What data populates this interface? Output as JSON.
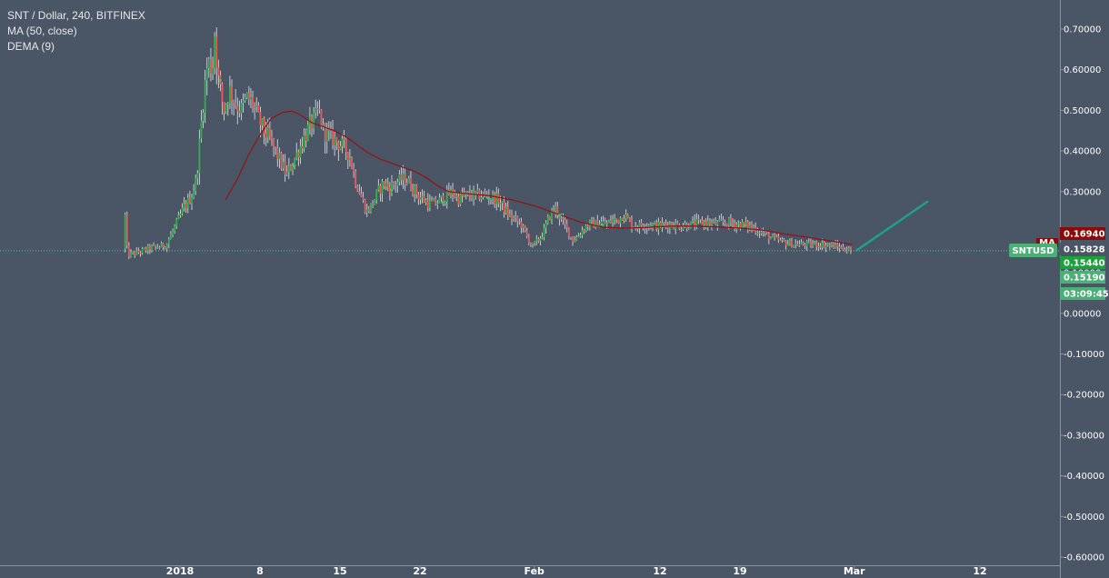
{
  "legend": {
    "symbol": "SNT / Dollar, 240, BITFINEX",
    "ma": "MA (50, close)",
    "dema": "DEMA (9)"
  },
  "colors": {
    "background": "#4a5566",
    "up": "#30b34a",
    "down": "#ee5a5a",
    "wick": "#ffffff",
    "ma": "#8e1818",
    "dema_dots": "#3ec95a",
    "projection": "#1f9f8c",
    "last_price_line": "#4fc3a1"
  },
  "chart_data": {
    "type": "candlestick",
    "title": "SNT / Dollar, 240, BITFINEX",
    "ylim": [
      -0.6,
      0.72
    ],
    "y_ticks": [
      "0.70000",
      "0.60000",
      "0.50000",
      "0.40000",
      "0.30000",
      "0.20000",
      "0.10000",
      "0.00000",
      "-0.10000",
      "-0.20000",
      "-0.30000",
      "-0.40000",
      "-0.50000",
      "-0.60000"
    ],
    "y_tick_values": [
      0.7,
      0.6,
      0.5,
      0.4,
      0.3,
      0.2,
      0.1,
      0.0,
      -0.1,
      -0.2,
      -0.3,
      -0.4,
      -0.5,
      -0.6
    ],
    "x_ticks": [
      {
        "label": "2018",
        "day": 0
      },
      {
        "label": "8",
        "day": 7
      },
      {
        "label": "15",
        "day": 14
      },
      {
        "label": "22",
        "day": 21
      },
      {
        "label": "Feb",
        "day": 31
      },
      {
        "label": "12",
        "day": 42
      },
      {
        "label": "19",
        "day": 49
      },
      {
        "label": "Mar",
        "day": 59
      },
      {
        "label": "12",
        "day": 70
      }
    ],
    "xlim_days": [
      -15,
      76
    ],
    "price_path": [
      [
        -4.8,
        0.16
      ],
      [
        -4.7,
        0.38
      ],
      [
        -4.6,
        0.17
      ],
      [
        -4.3,
        0.145
      ],
      [
        -3.5,
        0.15
      ],
      [
        -2.5,
        0.16
      ],
      [
        -1.5,
        0.165
      ],
      [
        -1.0,
        0.17
      ],
      [
        0.0,
        0.23
      ],
      [
        0.5,
        0.26
      ],
      [
        1.0,
        0.28
      ],
      [
        1.3,
        0.3
      ],
      [
        1.6,
        0.33
      ],
      [
        2.0,
        0.46
      ],
      [
        2.3,
        0.55
      ],
      [
        2.6,
        0.62
      ],
      [
        3.0,
        0.6
      ],
      [
        3.2,
        0.69
      ],
      [
        3.5,
        0.58
      ],
      [
        4.0,
        0.5
      ],
      [
        4.5,
        0.55
      ],
      [
        5.0,
        0.52
      ],
      [
        5.5,
        0.5
      ],
      [
        6.0,
        0.53
      ],
      [
        6.5,
        0.52
      ],
      [
        7.0,
        0.48
      ],
      [
        7.5,
        0.45
      ],
      [
        8.0,
        0.43
      ],
      [
        8.5,
        0.4
      ],
      [
        9.0,
        0.37
      ],
      [
        9.5,
        0.34
      ],
      [
        10.0,
        0.37
      ],
      [
        10.5,
        0.4
      ],
      [
        11.0,
        0.43
      ],
      [
        11.5,
        0.46
      ],
      [
        12.0,
        0.48
      ],
      [
        12.3,
        0.5
      ],
      [
        12.7,
        0.45
      ],
      [
        13.0,
        0.44
      ],
      [
        13.5,
        0.43
      ],
      [
        14.0,
        0.42
      ],
      [
        14.5,
        0.41
      ],
      [
        15.0,
        0.39
      ],
      [
        15.5,
        0.33
      ],
      [
        16.0,
        0.29
      ],
      [
        16.5,
        0.25
      ],
      [
        17.0,
        0.27
      ],
      [
        17.5,
        0.3
      ],
      [
        18.0,
        0.32
      ],
      [
        18.5,
        0.31
      ],
      [
        19.0,
        0.32
      ],
      [
        19.5,
        0.33
      ],
      [
        20.0,
        0.33
      ],
      [
        20.5,
        0.31
      ],
      [
        21.0,
        0.29
      ],
      [
        21.5,
        0.28
      ],
      [
        22.0,
        0.27
      ],
      [
        22.5,
        0.27
      ],
      [
        23.0,
        0.28
      ],
      [
        23.5,
        0.29
      ],
      [
        24.0,
        0.3
      ],
      [
        24.5,
        0.28
      ],
      [
        25.0,
        0.29
      ],
      [
        26.0,
        0.29
      ],
      [
        27.0,
        0.29
      ],
      [
        28.0,
        0.28
      ],
      [
        28.5,
        0.26
      ],
      [
        29.0,
        0.24
      ],
      [
        29.5,
        0.23
      ],
      [
        30.0,
        0.22
      ],
      [
        30.5,
        0.19
      ],
      [
        31.0,
        0.165
      ],
      [
        31.5,
        0.18
      ],
      [
        32.0,
        0.2
      ],
      [
        32.5,
        0.24
      ],
      [
        33.0,
        0.26
      ],
      [
        33.5,
        0.23
      ],
      [
        34.0,
        0.21
      ],
      [
        34.5,
        0.18
      ],
      [
        35.0,
        0.19
      ],
      [
        35.5,
        0.21
      ],
      [
        36.0,
        0.22
      ],
      [
        36.5,
        0.22
      ],
      [
        37.0,
        0.225
      ],
      [
        37.5,
        0.22
      ],
      [
        38.0,
        0.23
      ],
      [
        38.5,
        0.23
      ],
      [
        39.0,
        0.245
      ],
      [
        39.5,
        0.225
      ],
      [
        40.0,
        0.215
      ],
      [
        41.0,
        0.22
      ],
      [
        42.0,
        0.215
      ],
      [
        43.0,
        0.22
      ],
      [
        44.0,
        0.215
      ],
      [
        45.0,
        0.22
      ],
      [
        46.0,
        0.225
      ],
      [
        47.0,
        0.22
      ],
      [
        48.0,
        0.225
      ],
      [
        49.0,
        0.22
      ],
      [
        50.0,
        0.215
      ],
      [
        51.0,
        0.2
      ],
      [
        52.0,
        0.185
      ],
      [
        53.0,
        0.175
      ],
      [
        54.0,
        0.17
      ],
      [
        55.0,
        0.17
      ],
      [
        56.0,
        0.17
      ],
      [
        57.0,
        0.168
      ],
      [
        58.0,
        0.162
      ],
      [
        58.8,
        0.156
      ]
    ],
    "ma_path": [
      [
        4.0,
        0.28
      ],
      [
        5.0,
        0.33
      ],
      [
        6.0,
        0.39
      ],
      [
        7.0,
        0.44
      ],
      [
        8.0,
        0.48
      ],
      [
        9.0,
        0.495
      ],
      [
        9.8,
        0.498
      ],
      [
        10.5,
        0.49
      ],
      [
        11.5,
        0.47
      ],
      [
        12.5,
        0.46
      ],
      [
        13.5,
        0.45
      ],
      [
        14.5,
        0.435
      ],
      [
        15.5,
        0.415
      ],
      [
        16.5,
        0.395
      ],
      [
        17.5,
        0.38
      ],
      [
        18.5,
        0.37
      ],
      [
        19.5,
        0.36
      ],
      [
        20.5,
        0.35
      ],
      [
        21.5,
        0.335
      ],
      [
        22.5,
        0.315
      ],
      [
        23.5,
        0.3
      ],
      [
        25.0,
        0.295
      ],
      [
        27.0,
        0.29
      ],
      [
        29.0,
        0.28
      ],
      [
        31.0,
        0.265
      ],
      [
        33.0,
        0.245
      ],
      [
        35.0,
        0.225
      ],
      [
        37.0,
        0.212
      ],
      [
        39.0,
        0.21
      ],
      [
        41.0,
        0.212
      ],
      [
        43.0,
        0.215
      ],
      [
        45.0,
        0.215
      ],
      [
        47.0,
        0.213
      ],
      [
        49.0,
        0.21
      ],
      [
        51.0,
        0.205
      ],
      [
        53.0,
        0.195
      ],
      [
        55.0,
        0.187
      ],
      [
        57.0,
        0.178
      ],
      [
        58.8,
        0.17
      ]
    ],
    "projection": {
      "from": [
        59.2,
        0.155
      ],
      "to": [
        65.4,
        0.275
      ]
    },
    "last_price": 0.1544,
    "price_tags": [
      {
        "label": "0.16940",
        "value": 0.1694,
        "bg": "#8b0b0b",
        "fg": "#ffffff"
      },
      {
        "label": "0.15828",
        "value": 0.15828,
        "bg": "#4a5566",
        "fg": "#ffffff"
      },
      {
        "label": "0.15440",
        "value": 0.1544,
        "bg": "#1ca23a",
        "fg": "#ffffff"
      },
      {
        "label": "0.15190",
        "value": 0.1519,
        "bg": "#4caf78",
        "fg": "#ffffff"
      },
      {
        "label": "03:09:45",
        "value": 0.0,
        "bg": "#4caf78",
        "fg": "#ffffff"
      }
    ],
    "ma_tag": "MA",
    "symbol_tag": "SNTUSD"
  }
}
